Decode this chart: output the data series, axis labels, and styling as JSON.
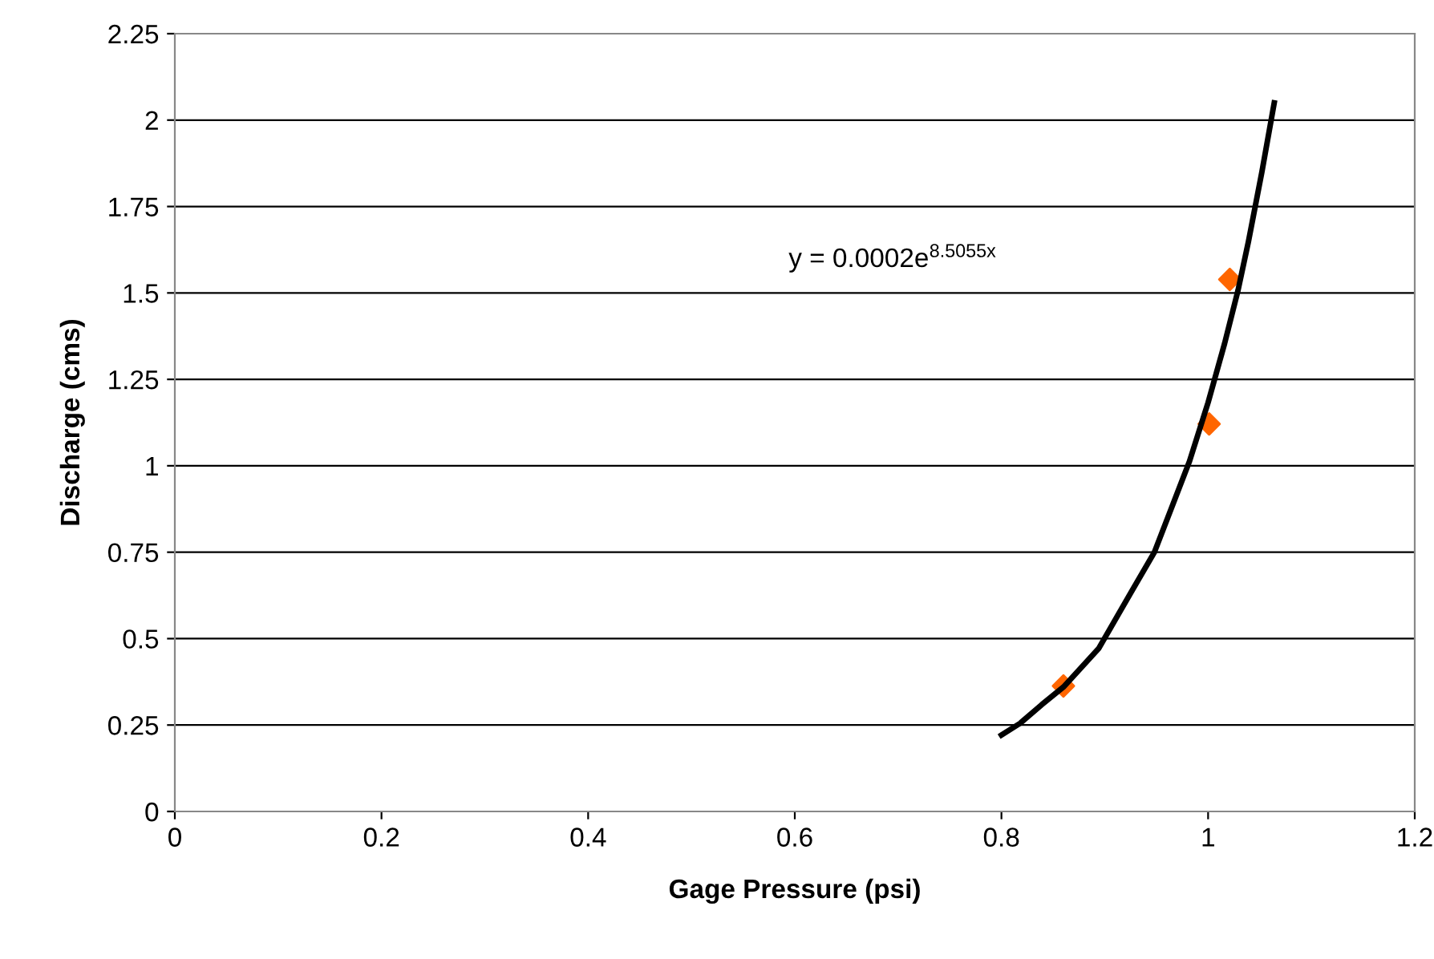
{
  "chart_data": {
    "type": "scatter",
    "xlabel": "Gage Pressure (psi)",
    "ylabel": "Discharge (cms)",
    "series": [
      {
        "color": "#ff6600",
        "marker": "diamond",
        "x": [
          0.86,
          1.001,
          1.021
        ],
        "values": [
          0.363,
          1.121,
          1.539
        ]
      },
      {
        "type": "line",
        "color": "#000000",
        "marker": "none",
        "line_style": "solid",
        "x": [
          0.8,
          0.818,
          0.839,
          0.86,
          0.894,
          0.927,
          0.948,
          0.966,
          0.982,
          1.0,
          1.016,
          1.029,
          1.039,
          1.052,
          1.064
        ],
        "values": [
          0.221,
          0.255,
          0.309,
          0.36,
          0.471,
          0.642,
          0.75,
          0.889,
          1.013,
          1.183,
          1.354,
          1.508,
          1.648,
          1.849,
          2.05
        ]
      }
    ],
    "annotations": [
      "y = 0.0002e$^{8.5055x}$"
    ],
    "xlim": [
      0,
      1.2
    ],
    "xticks": [
      0,
      0.2,
      0.4,
      0.6,
      0.8,
      1,
      1.2
    ],
    "ylim": [
      0,
      2.25
    ],
    "yticks": [
      0,
      0.25,
      0.5,
      0.75,
      1,
      1.25,
      1.5,
      1.75,
      2,
      2.25
    ],
    "grid": "y",
    "legend": false
  }
}
